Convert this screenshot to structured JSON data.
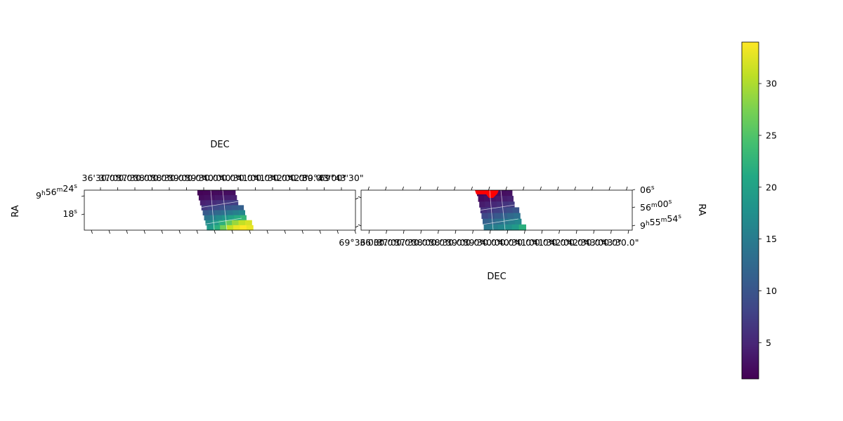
{
  "chart_data": [
    {
      "type": "heatmap",
      "panel": "left",
      "xlabel": "DEC",
      "ylabel": "RA",
      "x_tick_labels": [
        "36'30.0\"",
        "37'00.0\"",
        "37'30.0\"",
        "38'00.0\"",
        "38'30.0\"",
        "39'00.0\"",
        "39'30.0\"",
        "40'00.0\"",
        "40'30.0\"",
        "41'00.0\"",
        "41'30.0\"",
        "42'00.0\"",
        "42'30.0\"",
        "69°43'00\"",
        "69°43'30\""
      ],
      "x_axis_position": "top",
      "y_tick_labels": [
        {
          "h": "9",
          "m": "56",
          "s": "24"
        },
        {
          "s": "18"
        }
      ],
      "grid": true,
      "colormap": "viridis",
      "value_range": [
        1.5,
        34
      ],
      "rows": [
        [
          1.8,
          2.0,
          2.2,
          2.4,
          2.5,
          2.6,
          2.7
        ],
        [
          2.5,
          2.8,
          3.2,
          3.6,
          4.0,
          4.2,
          4.4
        ],
        [
          4.5,
          5.0,
          5.6,
          6.2,
          6.8,
          7.2,
          7.6
        ],
        [
          7.0,
          7.8,
          8.6,
          9.4,
          10.2,
          10.8,
          11.4
        ],
        [
          10.5,
          11.5,
          12.5,
          13.5,
          14.5,
          15.5,
          16.5
        ],
        [
          14.0,
          15.5,
          17.0,
          18.5,
          20.0,
          21.5,
          23.0
        ],
        [
          17.0,
          19.0,
          22.0,
          26.0,
          29.0,
          31.0,
          32.0
        ],
        [
          19.0,
          22.0,
          27.0,
          31.0,
          33.0,
          34.0,
          33.0
        ]
      ]
    },
    {
      "type": "heatmap",
      "panel": "right",
      "xlabel": "DEC",
      "ylabel": "RA",
      "x_tick_labels": [
        "69°36'00\"",
        "36'30.0\"",
        "37'00.0\"",
        "37'30.0\"",
        "38'00.0\"",
        "38'30.0\"",
        "39'00.0\"",
        "39'30.0\"",
        "40'00.0\"",
        "40'30.0\"",
        "41'00.0\"",
        "41'30.0\"",
        "42'00.0\"",
        "42'30.0\"",
        "43'00.0\"",
        "43'30.0\""
      ],
      "x_axis_position": "bottom",
      "y_tick_labels": [
        {
          "s": "06"
        },
        {
          "m": "56",
          "s": "00"
        },
        {
          "h": "9",
          "m": "55",
          "s": "54"
        }
      ],
      "y_axis_position": "right",
      "grid": true,
      "colormap": "viridis",
      "overlay_color": "#ff0000",
      "value_range": [
        1.5,
        34
      ],
      "rows": [
        [
          2.0,
          2.2,
          2.4,
          2.6,
          2.8,
          3.0
        ],
        [
          2.6,
          3.0,
          3.4,
          3.8,
          4.2,
          4.6
        ],
        [
          4.0,
          4.6,
          5.2,
          5.8,
          6.4,
          7.0
        ],
        [
          6.0,
          6.8,
          7.6,
          8.4,
          9.2,
          10.0
        ],
        [
          8.5,
          9.5,
          10.5,
          11.5,
          12.5,
          13.5
        ],
        [
          11.5,
          12.5,
          13.5,
          14.5,
          15.5,
          16.5
        ],
        [
          14.5,
          15.5,
          16.5,
          17.5,
          19.0,
          22.0
        ]
      ]
    }
  ],
  "colorbar": {
    "colormap": "viridis",
    "min": 1.5,
    "max": 34,
    "ticks": [
      5,
      10,
      15,
      20,
      25,
      30
    ],
    "tick_labels": [
      "5",
      "10",
      "15",
      "20",
      "25",
      "30"
    ]
  }
}
